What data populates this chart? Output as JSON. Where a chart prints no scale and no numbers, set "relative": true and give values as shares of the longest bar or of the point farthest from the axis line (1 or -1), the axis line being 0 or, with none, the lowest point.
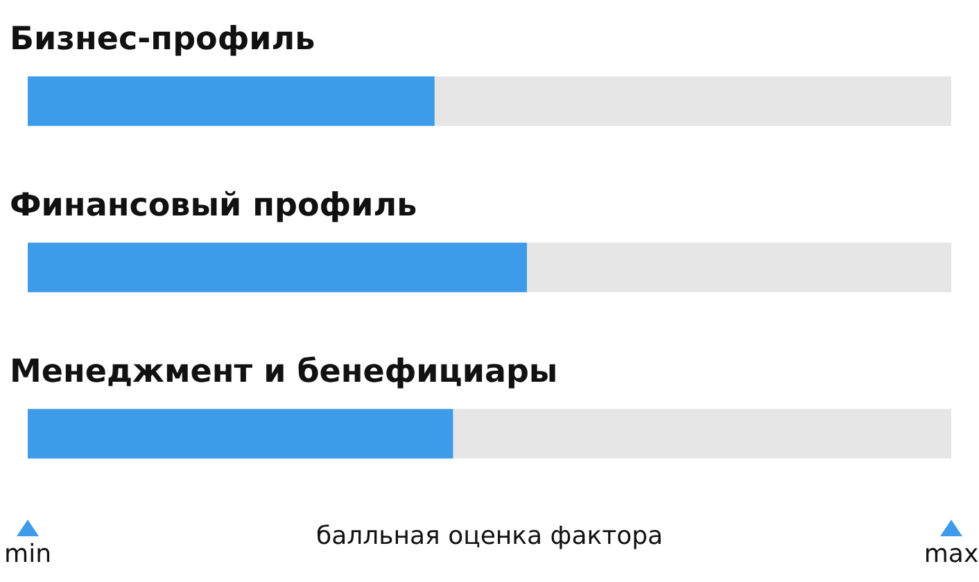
{
  "chart_data": {
    "type": "bar",
    "orientation": "horizontal",
    "stacked": true,
    "relative": true,
    "categories": [
      "Бизнес-профиль",
      "Финансовый профиль",
      "Менеджмент и бенефициары"
    ],
    "series": [
      {
        "color": "#3d9be9",
        "values": [
          0.44,
          0.54,
          0.46
        ]
      },
      {
        "color": "#e6e6e6",
        "values": [
          0.56,
          0.46,
          0.54
        ]
      }
    ],
    "xlabel": "балльная оценка фактора",
    "annotations": [
      "min",
      "max"
    ]
  }
}
